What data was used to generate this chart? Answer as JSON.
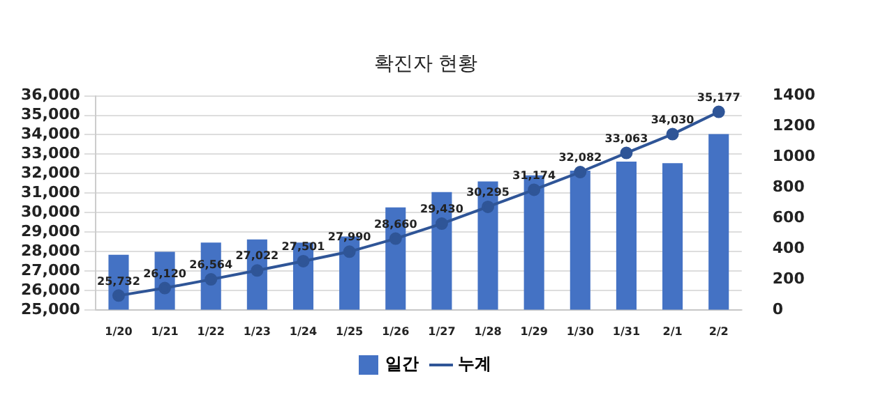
{
  "chart_data": {
    "type": "bar",
    "title": "확진자 현황",
    "categories": [
      "1/20",
      "1/21",
      "1/22",
      "1/23",
      "1/24",
      "1/25",
      "1/26",
      "1/27",
      "1/28",
      "1/29",
      "1/30",
      "1/31",
      "2/1",
      "2/2"
    ],
    "series": [
      {
        "name": "일간",
        "axis": "y2",
        "color": "#4472c4",
        "values": [
          360,
          380,
          440,
          460,
          440,
          480,
          670,
          770,
          840,
          880,
          910,
          970,
          960,
          1150
        ]
      },
      {
        "name": "누계",
        "type": "line",
        "color": "#2f5597",
        "marker": "circle",
        "values": [
          25732,
          26120,
          26564,
          27022,
          27501,
          27990,
          28660,
          29430,
          30295,
          31174,
          32082,
          33063,
          34030,
          35177
        ],
        "value_labels": [
          "25,732",
          "26,120",
          "26,564",
          "27,022",
          "27,501",
          "27,990",
          "28,660",
          "29,430",
          "30,295",
          "31,174",
          "32,082",
          "33,063",
          "34,030",
          "35,177"
        ]
      }
    ],
    "ylim": [
      25000,
      36000
    ],
    "yticks": [
      {
        "value": 25000,
        "label": "25,000"
      },
      {
        "value": 26000,
        "label": "26,000"
      },
      {
        "value": 27000,
        "label": "27,000"
      },
      {
        "value": 28000,
        "label": "28,000"
      },
      {
        "value": 29000,
        "label": "29,000"
      },
      {
        "value": 30000,
        "label": "30,000"
      },
      {
        "value": 31000,
        "label": "31,000"
      },
      {
        "value": 32000,
        "label": "32,000"
      },
      {
        "value": 33000,
        "label": "33,000"
      },
      {
        "value": 34000,
        "label": "34,000"
      },
      {
        "value": 35000,
        "label": "35,000"
      },
      {
        "value": 36000,
        "label": "36,000"
      }
    ],
    "y2lim": [
      0,
      1400
    ],
    "y2ticks": [
      0,
      200,
      400,
      600,
      800,
      1000,
      1200,
      1400
    ],
    "grid": "y",
    "legend": "bottom"
  }
}
